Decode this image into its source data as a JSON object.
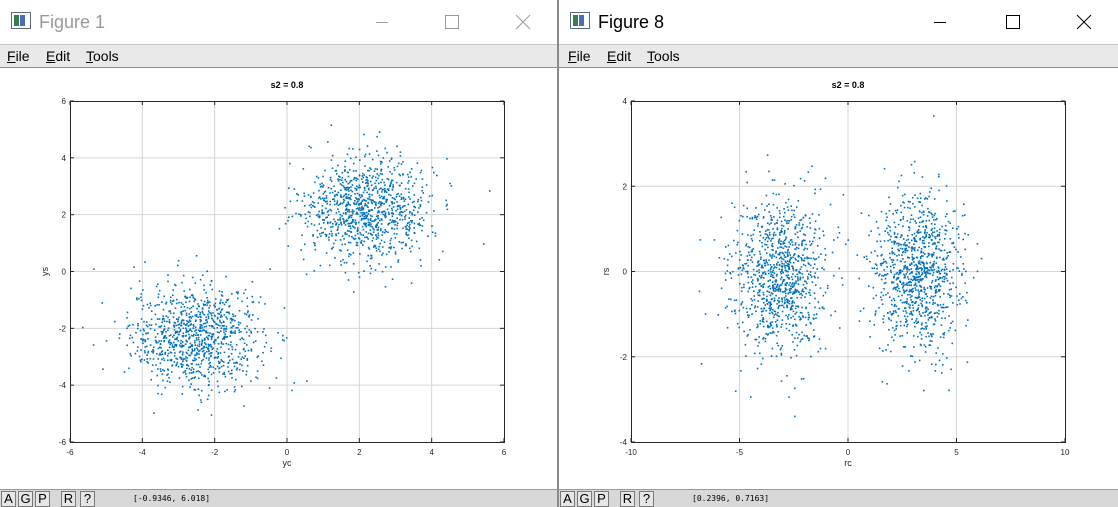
{
  "windows": [
    {
      "id": "left",
      "title": "Figure 1",
      "active": false,
      "menu": [
        "File",
        "Edit",
        "Tools"
      ],
      "toolbar_buttons": [
        "A",
        "G",
        "P",
        "R",
        "?"
      ],
      "coords_readout": "[-0.9346, 6.018]"
    },
    {
      "id": "right",
      "title": "Figure 8",
      "active": true,
      "menu": [
        "File",
        "Edit",
        "Tools"
      ],
      "toolbar_buttons": [
        "A",
        "G",
        "P",
        "R",
        "?"
      ],
      "coords_readout": "[0.2396, 0.7163]"
    }
  ],
  "icons": {
    "app": "figure-icon",
    "minimize": "minimize-icon",
    "maximize": "maximize-icon",
    "close": "close-icon"
  },
  "colors": {
    "points": "#0072bd",
    "grid": "#d6d6d6",
    "title_inactive": "#9a9a9a"
  },
  "chart_data": [
    {
      "type": "scatter",
      "title": "s2 = 0.8",
      "xlabel": "yc",
      "ylabel": "ys",
      "xlim": [
        -6,
        6
      ],
      "ylim": [
        -6,
        6
      ],
      "xticks": [
        -6,
        -4,
        -2,
        0,
        2,
        4,
        6
      ],
      "yticks": [
        -6,
        -4,
        -2,
        0,
        2,
        4,
        6
      ],
      "grid": true,
      "series": [
        {
          "cluster_center": [
            -2.5,
            -2.3
          ],
          "spread": [
            0.9,
            0.9
          ],
          "points_approx": 1000
        },
        {
          "cluster_center": [
            2.2,
            2.2
          ],
          "spread": [
            0.9,
            0.9
          ],
          "points_approx": 1000
        }
      ]
    },
    {
      "type": "scatter",
      "title": "s2 = 0.8",
      "xlabel": "rc",
      "ylabel": "rs",
      "xlim": [
        -10,
        10
      ],
      "ylim": [
        -4,
        4
      ],
      "xticks": [
        -10,
        -5,
        0,
        5,
        10
      ],
      "yticks": [
        -4,
        -2,
        0,
        2,
        4
      ],
      "grid": true,
      "series": [
        {
          "cluster_center": [
            -3.2,
            -0.1
          ],
          "spread": [
            1.1,
            0.9
          ],
          "points_approx": 1000
        },
        {
          "cluster_center": [
            3.2,
            0.0
          ],
          "spread": [
            1.0,
            0.9
          ],
          "points_approx": 1000
        }
      ]
    }
  ]
}
